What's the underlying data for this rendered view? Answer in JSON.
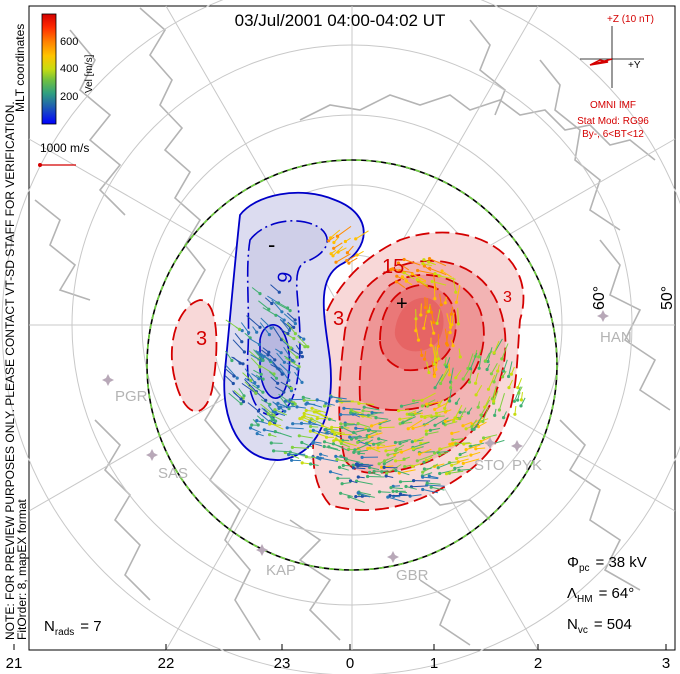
{
  "title": "03/Jul/2001 04:00-04:02 UT",
  "coord_system": "MLT coordinates",
  "notice": "NOTE: FOR PREVIEW PURPOSES ONLY. PLEASE CONTACT VT-SD STAFF FOR VERIFICATION.",
  "fit_order": "FitOrder: 8,  mapEX format",
  "colorbar": {
    "label": "Vel [m/s]",
    "ticks": [
      "600",
      "400",
      "200"
    ],
    "colors": [
      "#d40000",
      "#ff3000",
      "#ff8c00",
      "#ffc000",
      "#d8e000",
      "#80d040",
      "#40b070",
      "#2060a0",
      "#0000ff"
    ]
  },
  "scale_vector": "1000 m/s",
  "imf": {
    "header": "+Z (10 nT)",
    "axis": "+Y",
    "source": "OMNI IMF",
    "model_line1": "Stat Mod: RG96",
    "model_line2": "By-, 6<BT<12",
    "color": "#d40000"
  },
  "latitude_labels": [
    "60°",
    "50°"
  ],
  "mlt_ticks": [
    "21",
    "22",
    "23",
    "0",
    "1",
    "2",
    "3"
  ],
  "radars": [
    "HAN",
    "PGR",
    "SAS",
    "STO",
    "PYK",
    "KAP",
    "GBR"
  ],
  "contour_labels": [
    "-",
    "9",
    "3",
    "15",
    "+",
    "3",
    "3",
    "9"
  ],
  "stats": {
    "phi_symbol": "Φ",
    "phi_sub": "pc",
    "phi_value": "= 38 kV",
    "lambda_symbol": "Λ",
    "lambda_sub": "HM",
    "lambda_value": "= 64°",
    "nvc_symbol": "N",
    "nvc_sub": "vc",
    "nvc_value": "= 504",
    "nrads_symbol": "N",
    "nrads_sub": "rads",
    "nrads_value": "= 7"
  },
  "colors": {
    "positive_contour": "#d40000",
    "negative_contour": "#0000c8",
    "positive_fill": "#f2a8a8",
    "negative_fill": "#c8c8e8",
    "land": "#b8b8b8",
    "grid": "#c8c8c8",
    "radar": "#b8a8b8"
  }
}
